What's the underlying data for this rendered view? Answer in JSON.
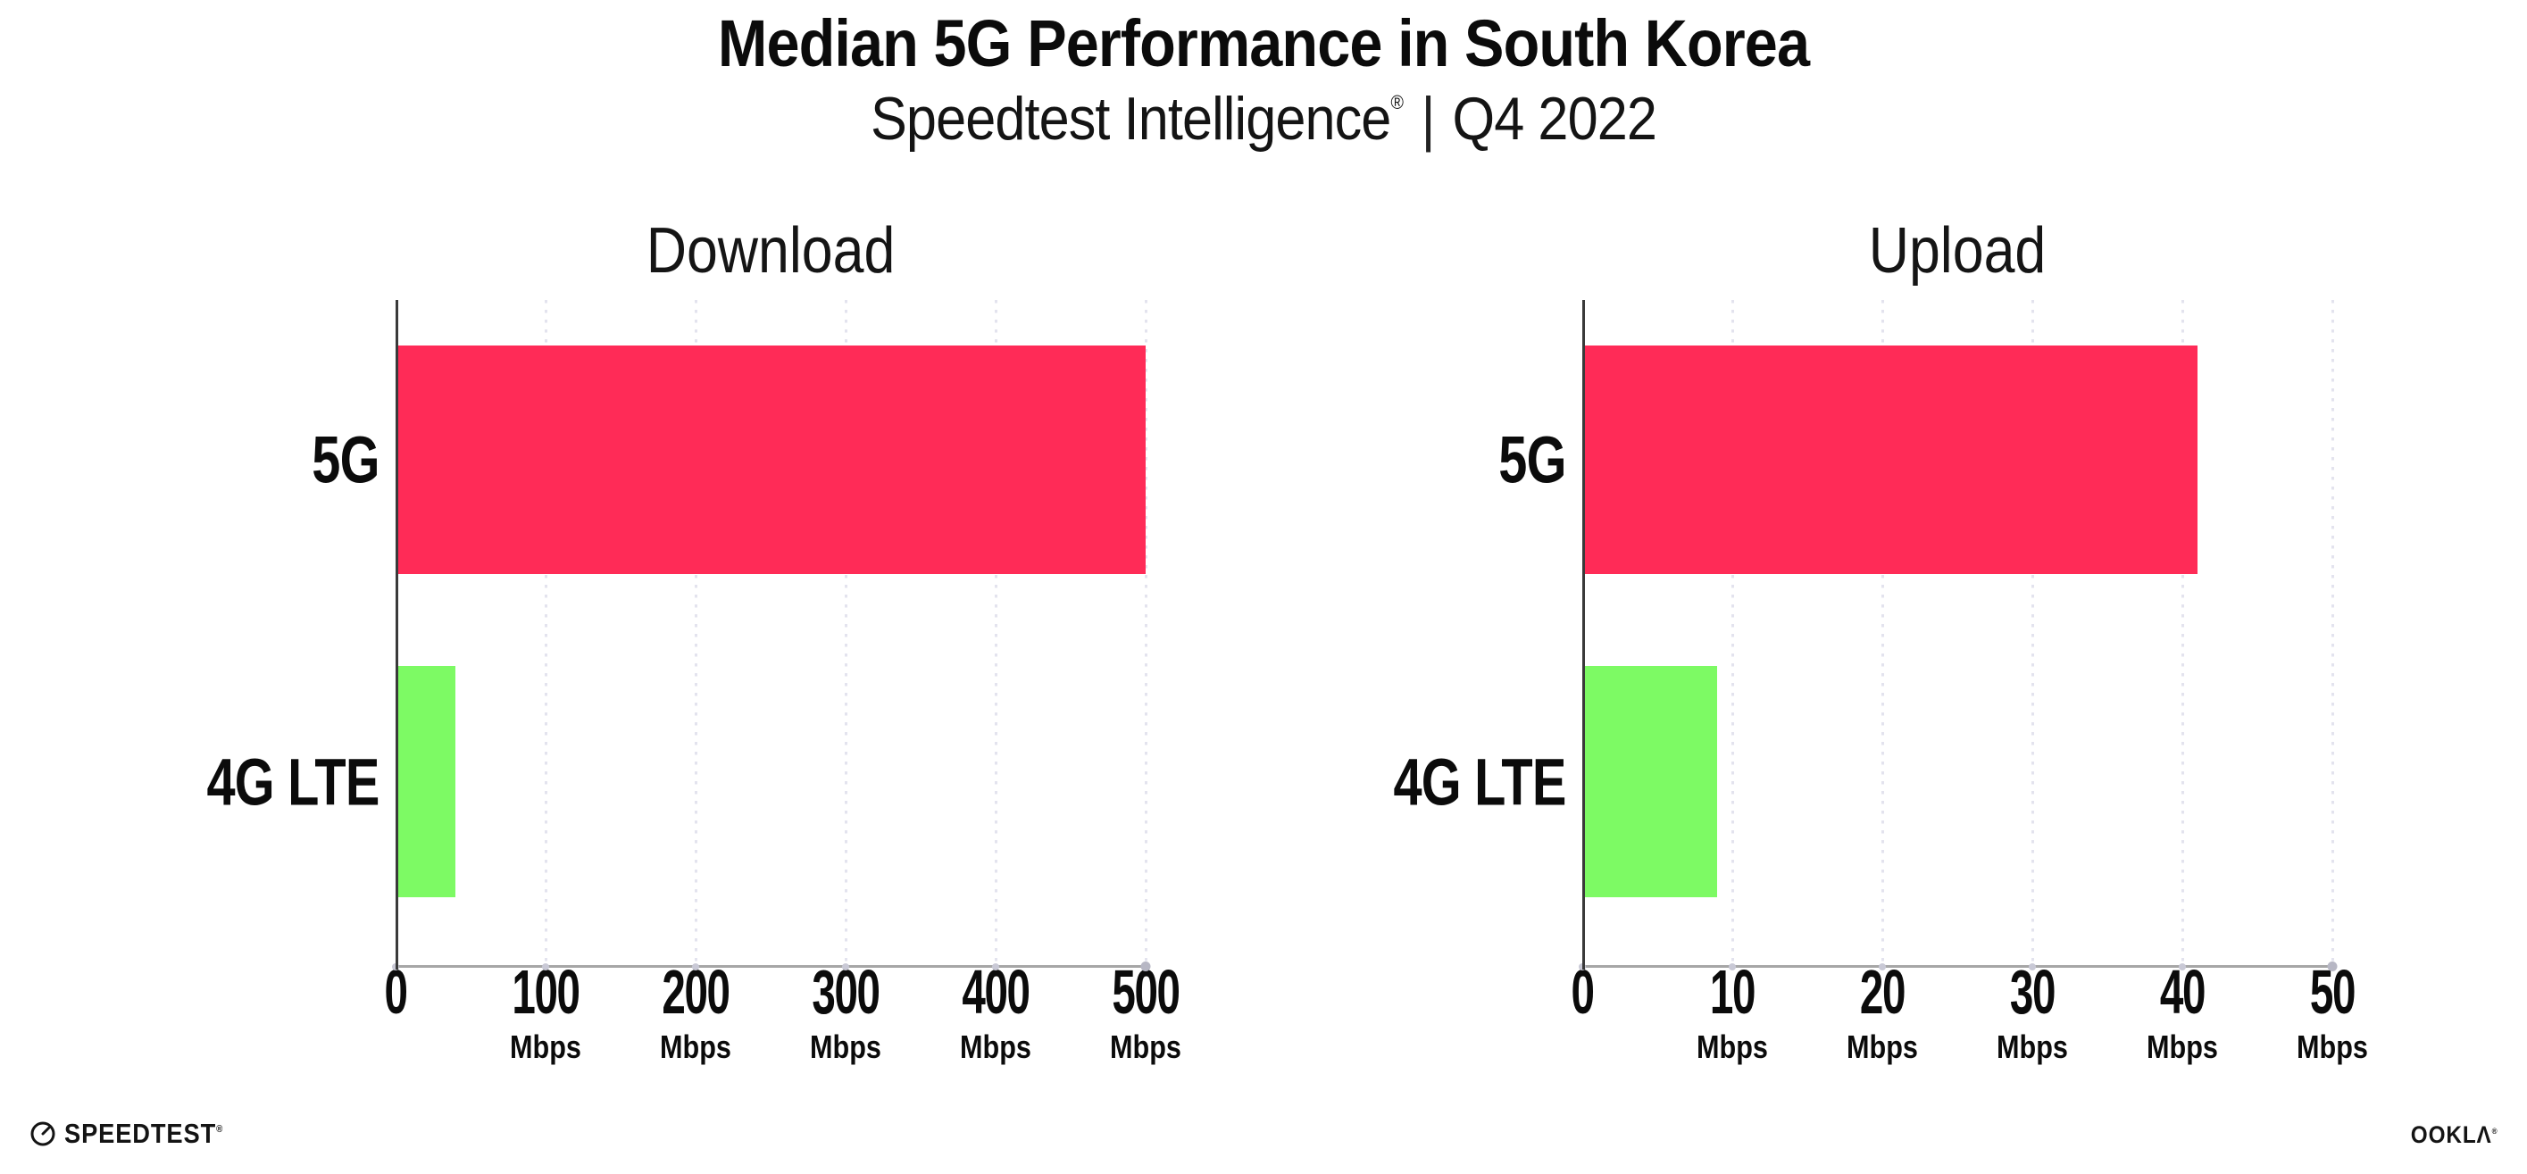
{
  "header": {
    "title": "Median 5G Performance in South Korea",
    "subtitle_brand": "Speedtest Intelligence",
    "subtitle_reg": "®",
    "subtitle_divider": "|",
    "subtitle_period": "Q4 2022"
  },
  "footer": {
    "speedtest_label": "SPEEDTEST",
    "speedtest_reg": "®",
    "ookla_label": "OOKLΛ",
    "ookla_reg": "®"
  },
  "colors": {
    "bar_5g": "#FF2B57",
    "bar_4g_lte": "#7DFA64",
    "y_axis": "#3A3A3A",
    "x_axis": "#A6A6A6",
    "gridline": "#E3E3EE",
    "text": "#0B0B0B"
  },
  "chart_data": [
    {
      "type": "bar",
      "orientation": "horizontal",
      "title": "Download",
      "categories": [
        "5G",
        "4G LTE"
      ],
      "values": [
        500,
        40
      ],
      "unit": "Mbps",
      "xlabel_unit": "Mbps",
      "xlim": [
        0,
        500
      ],
      "xticks": [
        0,
        100,
        200,
        300,
        400,
        500
      ],
      "bar_colors": [
        "#FF2B57",
        "#7DFA64"
      ],
      "grid": "dotted-vertical",
      "legend": "none"
    },
    {
      "type": "bar",
      "orientation": "horizontal",
      "title": "Upload",
      "categories": [
        "5G",
        "4G LTE"
      ],
      "values": [
        41,
        9
      ],
      "unit": "Mbps",
      "xlabel_unit": "Mbps",
      "xlim": [
        0,
        50
      ],
      "xticks": [
        0,
        10,
        20,
        30,
        40,
        50
      ],
      "bar_colors": [
        "#FF2B57",
        "#7DFA64"
      ],
      "grid": "dotted-vertical",
      "legend": "none"
    }
  ]
}
